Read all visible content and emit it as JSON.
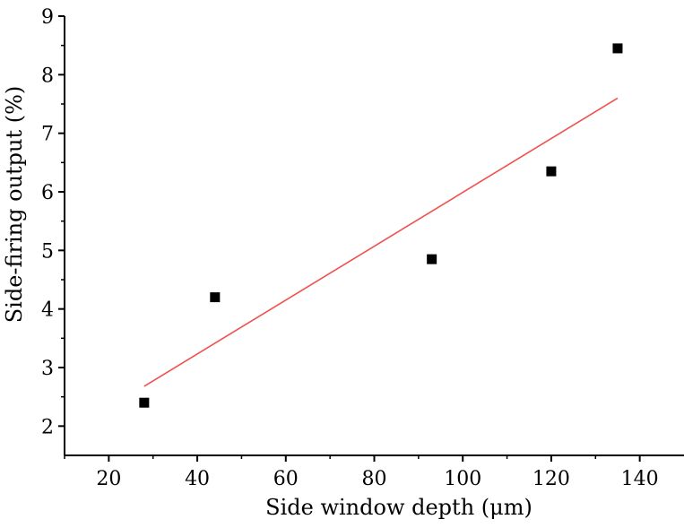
{
  "chart_data": {
    "type": "scatter",
    "xlabel": "Side window depth (μm)",
    "ylabel": "Side-firing output (%)",
    "xlim": [
      10,
      150
    ],
    "ylim": [
      1.5,
      9
    ],
    "xticks": [
      20,
      40,
      60,
      80,
      100,
      120,
      140
    ],
    "yticks": [
      2,
      3,
      4,
      5,
      6,
      7,
      8,
      9
    ],
    "grid": false,
    "series": [
      {
        "type": "scatter",
        "marker": "square",
        "color": "#000000",
        "x": [
          28,
          44,
          93,
          120,
          135
        ],
        "y": [
          2.4,
          4.2,
          4.85,
          6.35,
          8.45
        ]
      },
      {
        "type": "line",
        "color": "#f05050",
        "x": [
          28,
          135
        ],
        "y": [
          2.68,
          7.6
        ]
      }
    ]
  }
}
